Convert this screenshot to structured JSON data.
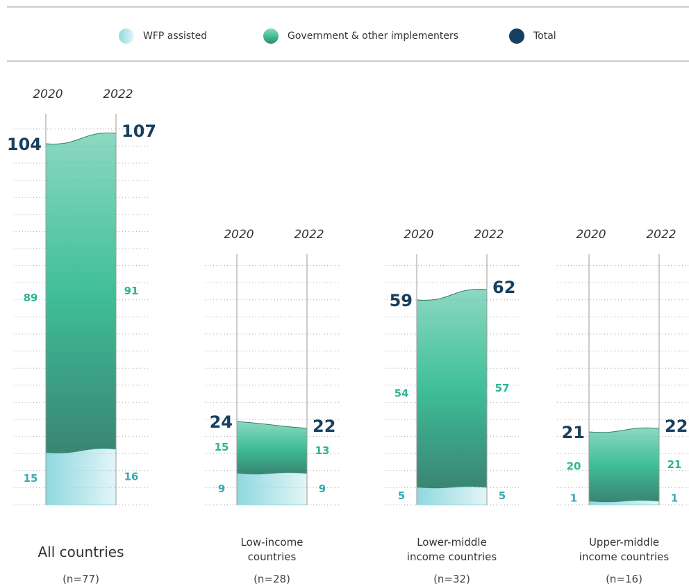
{
  "chart_data": {
    "type": "area",
    "x": [
      "2020",
      "2022"
    ],
    "categories": [
      "All countries",
      "Low-income countries",
      "Lower-middle income countries",
      "Upper-middle income countries"
    ],
    "subtitles": [
      "(n=77)",
      "(n=28)",
      "(n=32)",
      "(n=16)"
    ],
    "series": [
      {
        "name": "WFP assisted",
        "color": "#8fd8df",
        "values": [
          [
            15,
            16
          ],
          [
            9,
            9
          ],
          [
            5,
            5
          ],
          [
            1,
            1
          ]
        ]
      },
      {
        "name": "Government & other implementers",
        "color": "#3fbf98",
        "values": [
          [
            89,
            91
          ],
          [
            15,
            13
          ],
          [
            54,
            57
          ],
          [
            20,
            21
          ]
        ]
      },
      {
        "name": "Total",
        "color": "#173f5f",
        "values": [
          [
            104,
            107
          ],
          [
            24,
            22
          ],
          [
            59,
            62
          ],
          [
            21,
            22
          ]
        ]
      }
    ]
  }
}
